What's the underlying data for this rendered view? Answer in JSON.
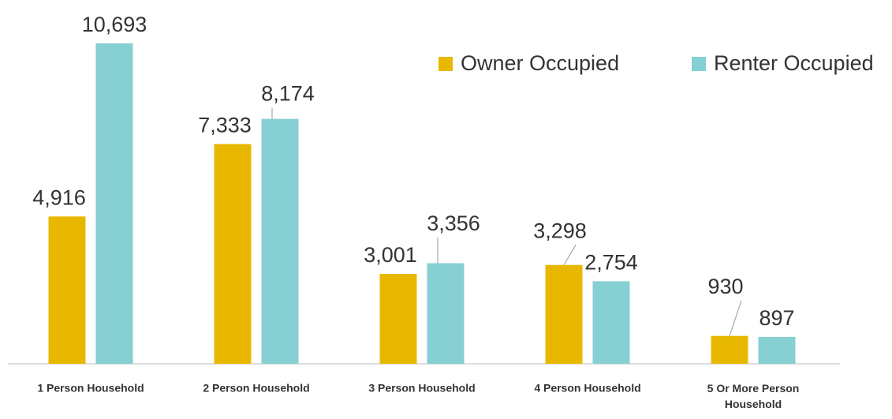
{
  "chart_data": {
    "type": "bar",
    "categories": [
      "1 Person Household",
      "2 Person Household",
      "3 Person Household",
      "4 Person Household",
      "5 Or More Person Household"
    ],
    "series": [
      {
        "name": "Owner Occupied",
        "color": "#e8b800",
        "values": [
          4916,
          7333,
          3001,
          3298,
          930
        ],
        "value_labels": [
          "4,916",
          "7,333",
          "3,001",
          "3,298",
          "930"
        ]
      },
      {
        "name": "Renter Occupied",
        "color": "#86cfd3",
        "values": [
          10693,
          8174,
          3356,
          2754,
          897
        ],
        "value_labels": [
          "10,693",
          "8,174",
          "3,356",
          "2,754",
          "897"
        ]
      }
    ],
    "legend": "top-right"
  }
}
